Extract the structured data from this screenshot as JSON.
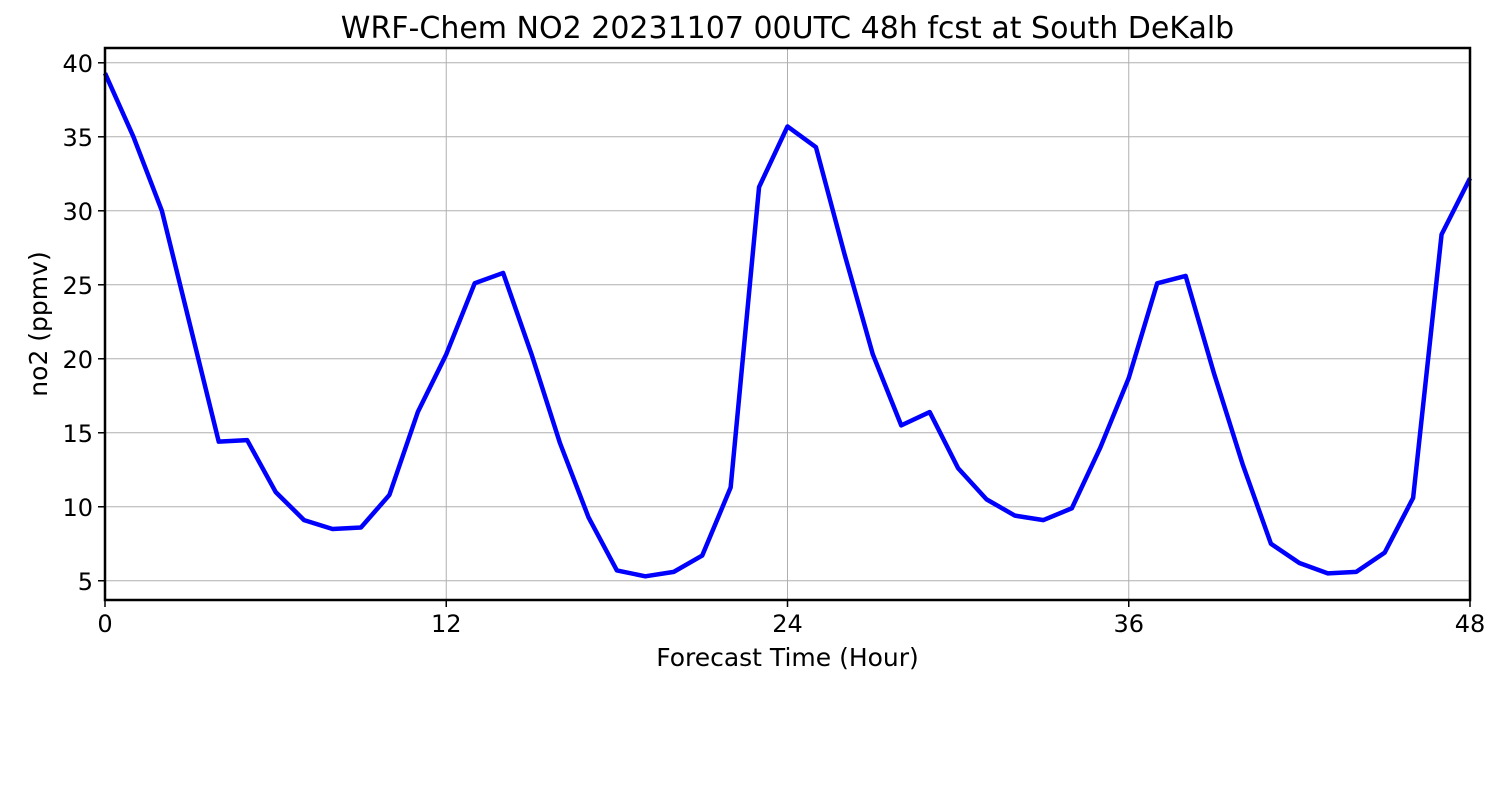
{
  "chart_data": {
    "type": "line",
    "title": "WRF-Chem NO2  20231107 00UTC 48h fcst at South DeKalb",
    "xlabel": "Forecast Time (Hour)",
    "ylabel": "no2  (ppmv)",
    "xlim": [
      0,
      48
    ],
    "ylim": [
      3.7,
      41
    ],
    "xticks": [
      0,
      12,
      24,
      36,
      48
    ],
    "yticks": [
      5,
      10,
      15,
      20,
      25,
      30,
      35,
      40
    ],
    "grid": true,
    "series": [
      {
        "color": "#0000ff",
        "x": [
          0,
          1,
          2,
          3,
          4,
          5,
          6,
          7,
          8,
          9,
          10,
          11,
          12,
          13,
          14,
          15,
          16,
          17,
          18,
          19,
          20,
          21,
          22,
          23,
          24,
          25,
          26,
          27,
          28,
          29,
          30,
          31,
          32,
          33,
          34,
          35,
          36,
          37,
          38,
          39,
          40,
          41,
          42,
          43,
          44,
          45,
          46,
          47,
          48
        ],
        "values": [
          39.3,
          35,
          30,
          22.2,
          14.4,
          14.5,
          11,
          9.1,
          8.5,
          8.6,
          10.8,
          16.4,
          20.3,
          25.1,
          25.8,
          20.3,
          14.3,
          9.3,
          5.7,
          5.3,
          5.6,
          6.7,
          11.3,
          31.6,
          35.7,
          34.3,
          27.1,
          20.3,
          15.5,
          16.4,
          12.6,
          10.5,
          9.4,
          9.1,
          9.9,
          14,
          18.7,
          25.1,
          25.6,
          19,
          12.9,
          7.5,
          6.2,
          5.5,
          5.6,
          6.9,
          10.6,
          28.4,
          32.2
        ]
      }
    ]
  }
}
